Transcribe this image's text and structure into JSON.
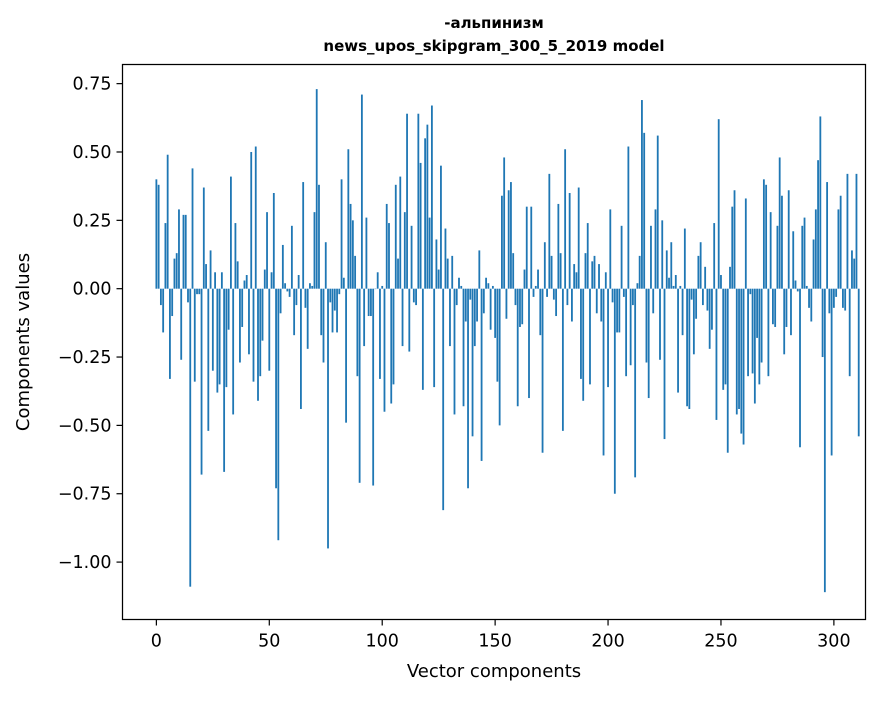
{
  "chart_data": {
    "type": "bar",
    "title": "-альпинизм",
    "subtitle": "news_upos_skipgram_300_5_2019 model",
    "xlabel": "Vector components",
    "ylabel": "Components values",
    "xlim": [
      -15,
      314
    ],
    "ylim": [
      -1.21,
      0.82
    ],
    "bar_color": "#1f77b4",
    "x_ticks": [
      0,
      50,
      100,
      150,
      200,
      250,
      300
    ],
    "x_tick_labels": [
      "0",
      "50",
      "100",
      "150",
      "200",
      "250",
      "300"
    ],
    "y_ticks": [
      0.75,
      0.5,
      0.25,
      0.0,
      -0.25,
      -0.5,
      -0.75,
      -1.0
    ],
    "y_tick_labels": [
      "0.75",
      "0.50",
      "0.25",
      "0.00",
      "−0.25",
      "−0.50",
      "−0.75",
      "−1.00"
    ],
    "x_start": 0,
    "values": [
      0.4,
      0.38,
      -0.06,
      -0.16,
      0.24,
      0.49,
      -0.33,
      -0.1,
      0.11,
      0.13,
      0.29,
      -0.26,
      0.27,
      0.27,
      -0.05,
      -1.09,
      0.44,
      -0.34,
      -0.02,
      -0.02,
      -0.68,
      0.37,
      0.09,
      -0.52,
      0.14,
      -0.3,
      0.06,
      -0.38,
      -0.35,
      0.06,
      -0.67,
      -0.36,
      -0.15,
      0.41,
      -0.46,
      0.24,
      0.1,
      -0.27,
      -0.14,
      0.03,
      0.05,
      -0.24,
      0.5,
      -0.34,
      0.52,
      -0.41,
      -0.32,
      -0.19,
      0.07,
      0.28,
      -0.3,
      0.06,
      0.35,
      -0.73,
      -0.92,
      -0.09,
      0.16,
      0.02,
      -0.01,
      -0.03,
      0.23,
      -0.17,
      -0.06,
      0.05,
      -0.44,
      0.39,
      -0.07,
      -0.22,
      0.02,
      0.01,
      0.28,
      0.73,
      0.38,
      -0.17,
      -0.27,
      0.17,
      -0.95,
      -0.05,
      -0.16,
      -0.08,
      -0.16,
      -0.02,
      0.4,
      0.04,
      -0.49,
      0.51,
      0.31,
      0.25,
      0.12,
      -0.32,
      -0.71,
      0.71,
      -0.21,
      0.26,
      -0.1,
      -0.1,
      -0.72,
      0.0,
      0.06,
      -0.33,
      0.01,
      -0.45,
      0.31,
      0.24,
      -0.42,
      -0.35,
      0.38,
      0.11,
      0.41,
      -0.21,
      0.28,
      0.64,
      -0.23,
      0.23,
      -0.05,
      -0.06,
      0.64,
      0.46,
      -0.37,
      0.55,
      0.6,
      0.26,
      0.67,
      -0.36,
      0.18,
      0.07,
      0.45,
      -0.81,
      0.22,
      0.11,
      -0.21,
      0.12,
      -0.46,
      -0.06,
      0.04,
      0.01,
      -0.43,
      -0.12,
      -0.73,
      -0.04,
      -0.54,
      -0.21,
      -0.12,
      0.14,
      -0.63,
      -0.09,
      0.04,
      0.02,
      -0.15,
      0.01,
      -0.18,
      -0.34,
      -0.5,
      0.34,
      0.48,
      -0.11,
      0.36,
      0.39,
      0.13,
      -0.06,
      -0.43,
      -0.14,
      -0.13,
      0.07,
      0.3,
      -0.4,
      0.3,
      -0.03,
      0.01,
      0.07,
      -0.17,
      -0.6,
      0.17,
      -0.03,
      0.42,
      0.12,
      -0.04,
      -0.1,
      0.31,
      0.13,
      -0.52,
      0.51,
      -0.06,
      0.35,
      -0.12,
      0.09,
      0.06,
      0.37,
      -0.33,
      -0.41,
      0.13,
      0.24,
      -0.35,
      0.1,
      0.12,
      -0.09,
      0.09,
      -0.12,
      -0.61,
      0.06,
      -0.36,
      0.29,
      -0.05,
      -0.75,
      -0.16,
      -0.16,
      0.23,
      -0.03,
      -0.32,
      0.52,
      -0.28,
      -0.06,
      -0.69,
      0.02,
      0.12,
      0.69,
      0.57,
      -0.27,
      -0.4,
      0.23,
      -0.09,
      0.29,
      0.56,
      -0.26,
      0.25,
      -0.55,
      0.14,
      0.04,
      0.17,
      0.01,
      0.05,
      -0.38,
      0.01,
      -0.17,
      0.22,
      -0.43,
      -0.44,
      -0.04,
      -0.24,
      -0.11,
      0.12,
      0.17,
      -0.06,
      0.08,
      -0.08,
      -0.22,
      -0.15,
      0.24,
      -0.48,
      0.62,
      0.05,
      -0.37,
      -0.35,
      -0.6,
      0.08,
      0.3,
      0.36,
      -0.46,
      -0.44,
      -0.53,
      -0.57,
      0.33,
      -0.32,
      -0.02,
      -0.31,
      -0.42,
      -0.18,
      -0.35,
      -0.27,
      0.4,
      0.38,
      -0.32,
      0.28,
      -0.13,
      -0.14,
      0.23,
      0.48,
      0.34,
      -0.24,
      -0.14,
      0.36,
      -0.17,
      0.21,
      0.03,
      -0.01,
      -0.58,
      0.23,
      0.26,
      0.01,
      -0.07,
      -0.12,
      0.18,
      0.29,
      0.47,
      0.63,
      -0.25,
      -1.11,
      0.39,
      -0.09,
      -0.61,
      -0.07,
      -0.03,
      0.29,
      0.34,
      -0.07,
      -0.08,
      0.42,
      -0.32,
      0.14,
      0.11,
      0.42,
      -0.54
    ]
  }
}
